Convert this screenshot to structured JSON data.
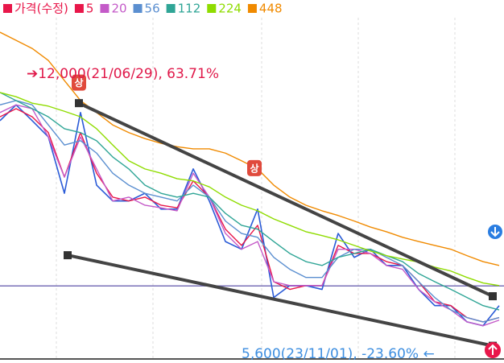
{
  "chart_data": {
    "type": "line",
    "categories": [
      null,
      null,
      null,
      null,
      null,
      null,
      null,
      null,
      null,
      null,
      null,
      null,
      null,
      null,
      null,
      null,
      null,
      null,
      null,
      null,
      null,
      null,
      null,
      null,
      null,
      null,
      null,
      null,
      null,
      null,
      null,
      null
    ],
    "series": [
      {
        "name": "가격(수정)",
        "color": "#e8174a",
        "line_color": "#2a5bd7",
        "values": [
          10910,
          11280,
          10910,
          10530,
          9210,
          11100,
          9400,
          9030,
          9030,
          9210,
          8840,
          8840,
          9780,
          9030,
          8080,
          7900,
          8840,
          6770,
          7050,
          7050,
          6960,
          8270,
          7710,
          7900,
          7520,
          7520,
          6960,
          6580,
          6580,
          6200,
          6110,
          6580
        ]
      },
      {
        "name": "5",
        "color": "#e8174a",
        "values": [
          11000,
          11190,
          11000,
          10630,
          9590,
          10630,
          9680,
          9120,
          9030,
          9120,
          8930,
          8870,
          9500,
          9120,
          8370,
          7990,
          8460,
          7140,
          6960,
          7050,
          7050,
          7990,
          7800,
          7800,
          7610,
          7520,
          7140,
          6670,
          6580,
          6300,
          6200,
          6300
        ]
      },
      {
        "name": "20",
        "color": "#c45ac8",
        "values": [
          11100,
          11280,
          11190,
          10530,
          9590,
          10530,
          9780,
          9030,
          9120,
          8930,
          8870,
          8800,
          9680,
          9120,
          8270,
          7900,
          8080,
          7140,
          7050,
          7050,
          7050,
          7900,
          7900,
          7800,
          7520,
          7430,
          6960,
          6670,
          6480,
          6200,
          6110,
          6240
        ]
      },
      {
        "name": "56",
        "color": "#5b8fd0",
        "values": [
          11280,
          11380,
          11280,
          10810,
          10340,
          10440,
          10150,
          9680,
          9400,
          9210,
          9120,
          9030,
          9400,
          9120,
          8560,
          8270,
          8180,
          7710,
          7430,
          7240,
          7240,
          7710,
          7900,
          7900,
          7710,
          7520,
          7140,
          6770,
          6480,
          6300,
          6200,
          6300
        ]
      },
      {
        "name": "112",
        "color": "#2fa596",
        "values": [
          11570,
          11380,
          11190,
          11000,
          10720,
          10630,
          10440,
          10060,
          9780,
          9400,
          9210,
          9120,
          9210,
          9120,
          8740,
          8460,
          8370,
          8080,
          7800,
          7610,
          7520,
          7710,
          7800,
          7900,
          7750,
          7610,
          7330,
          7140,
          6960,
          6770,
          6580,
          6480
        ]
      },
      {
        "name": "224",
        "color": "#8fdc00",
        "values": [
          11570,
          11470,
          11320,
          11250,
          11130,
          11000,
          10720,
          10340,
          9970,
          9780,
          9680,
          9550,
          9500,
          9360,
          9120,
          8930,
          8800,
          8610,
          8460,
          8310,
          8220,
          8120,
          7990,
          7860,
          7750,
          7670,
          7600,
          7480,
          7390,
          7240,
          7110,
          7050
        ]
      },
      {
        "name": "448",
        "color": "#f08a00",
        "values": [
          12980,
          12790,
          12600,
          12320,
          11850,
          11380,
          11100,
          10810,
          10630,
          10490,
          10380,
          10300,
          10250,
          10250,
          10150,
          9970,
          9780,
          9400,
          9120,
          8930,
          8800,
          8690,
          8560,
          8420,
          8310,
          8180,
          8080,
          7990,
          7900,
          7750,
          7610,
          7520
        ]
      }
    ],
    "ylim": [
      5350,
      13320
    ],
    "trendlines": [
      {
        "x": [
          4.9,
          30.6
        ],
        "values": [
          11320,
          6800
        ],
        "color": "#444444"
      },
      {
        "x": [
          4.2,
          30.6
        ],
        "values": [
          7760,
          5640
        ],
        "color": "#444444"
      }
    ],
    "hline": {
      "value": 7040,
      "color": "#7a72b8"
    },
    "high_label": "➔12,000(21/06/29), 63.71%",
    "low_label": "5,600(23/11/01), -23.60% ←",
    "signals": [
      {
        "label": "상",
        "x": 4.9,
        "value": 11800
      },
      {
        "label": "상",
        "x": 15.8,
        "value": 9800
      }
    ]
  }
}
